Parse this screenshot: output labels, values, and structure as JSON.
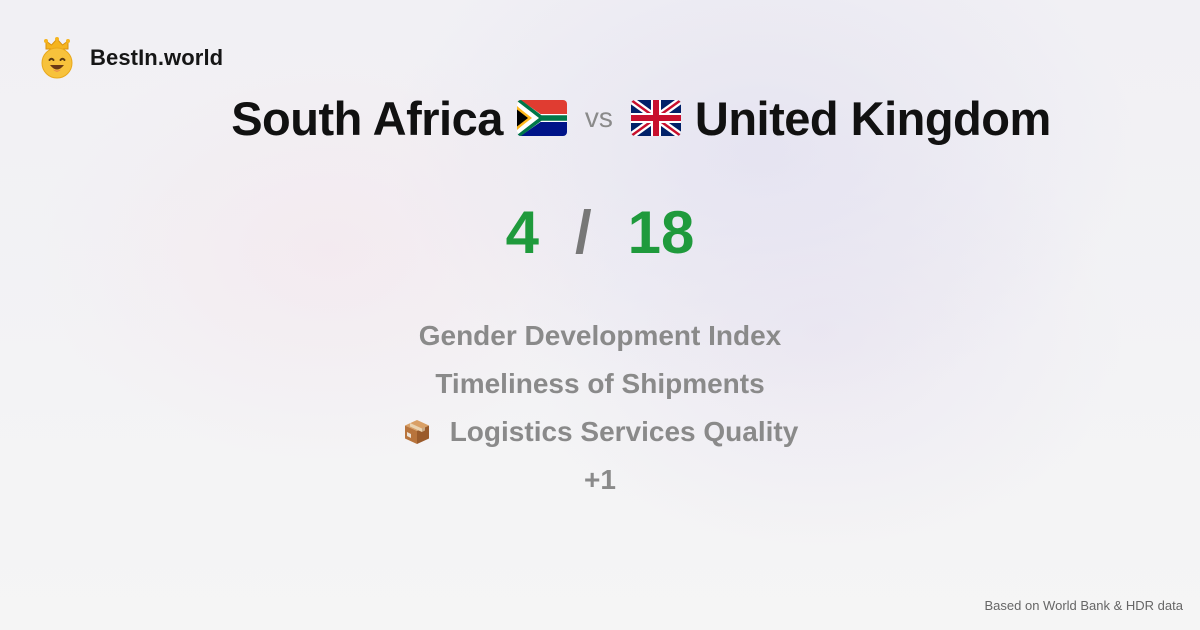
{
  "brand": {
    "name": "BestIn.world",
    "logo_icon": "crowned-smiley-icon"
  },
  "comparison": {
    "left_country": "South Africa",
    "left_flag_icon": "south-africa-flag-icon",
    "vs_label": "vs",
    "right_country": "United Kingdom",
    "right_flag_icon": "united-kingdom-flag-icon"
  },
  "score": {
    "left": "4",
    "separator": "/",
    "right": "18",
    "color": "#1f9a3c"
  },
  "metrics": [
    {
      "label": "Gender Development Index"
    },
    {
      "label": "Timeliness of Shipments"
    },
    {
      "label": "Logistics Services Quality",
      "icon": "package-icon"
    },
    {
      "label": "+1"
    }
  ],
  "footer": {
    "source": "Based on World Bank & HDR data"
  }
}
